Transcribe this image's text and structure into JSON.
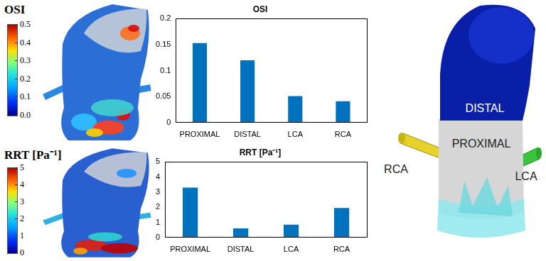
{
  "chart_data": [
    {
      "type": "bar",
      "title": "OSI",
      "categories": [
        "PROXIMAL",
        "DISTAL",
        "LCA",
        "RCA"
      ],
      "values": [
        0.153,
        0.12,
        0.051,
        0.041
      ],
      "color": "#0072bd",
      "ylim": [
        0,
        0.2
      ],
      "yticks": [
        0,
        0.05,
        0.1,
        0.15,
        0.2
      ],
      "grid": false
    },
    {
      "type": "bar",
      "title": "RRT [Pa⁻¹]",
      "categories": [
        "PROXIMAL",
        "DISTAL",
        "LCA",
        "RCA"
      ],
      "values": [
        3.3,
        0.6,
        0.85,
        1.95
      ],
      "color": "#0072bd",
      "ylim": [
        0,
        5
      ],
      "yticks": [
        0,
        1,
        2,
        3,
        4,
        5
      ],
      "grid": false
    }
  ],
  "colorbars": [
    {
      "title": "OSI",
      "range": [
        0,
        0.5
      ],
      "ticks": [
        {
          "value": 0,
          "label": "0.0"
        },
        0.1,
        0.2,
        0.3,
        0.4,
        0.5
      ]
    },
    {
      "title": "RRT [Pa⁻¹]",
      "range": [
        0,
        5
      ],
      "ticks": [
        0,
        1,
        2,
        3,
        4,
        5
      ]
    }
  ],
  "geometry_labels": {
    "distal": "DISTAL",
    "proximal": "PROXIMAL",
    "rca": "RCA",
    "lca": "LCA"
  }
}
